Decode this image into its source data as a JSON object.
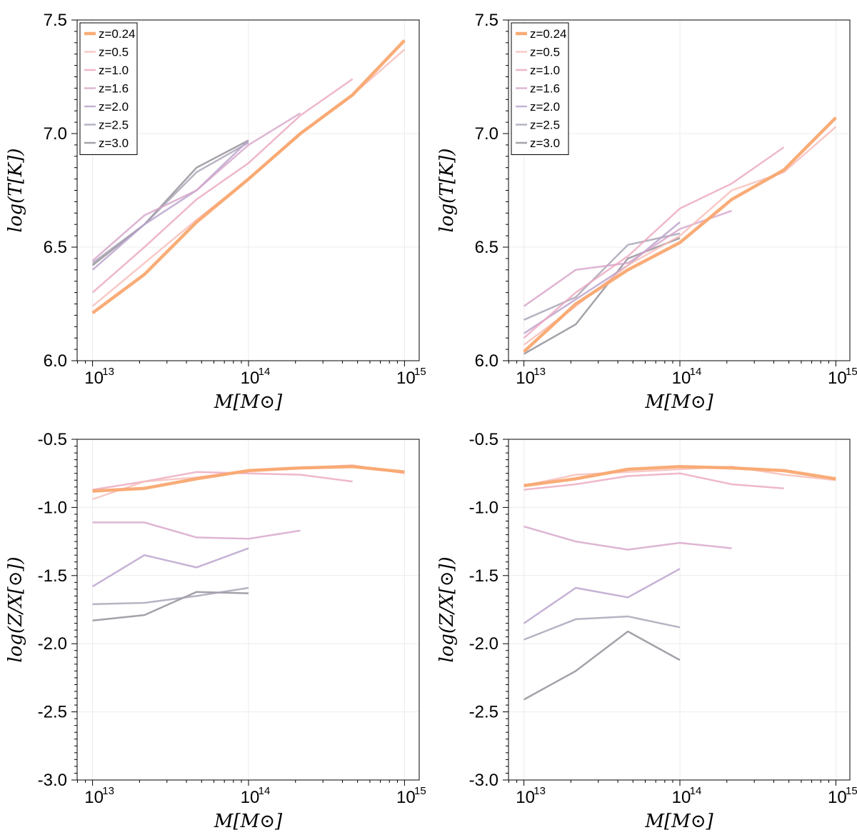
{
  "legend": [
    {
      "label": "z=0.24",
      "color": "#f9a870",
      "width": 4.5,
      "opacity": 0.95
    },
    {
      "label": "z=0.5",
      "color": "#f6bcb8",
      "width": 2.5,
      "opacity": 0.8
    },
    {
      "label": "z=1.0",
      "color": "#eba6bd",
      "width": 2.5,
      "opacity": 0.8
    },
    {
      "label": "z=1.6",
      "color": "#d6a2c8",
      "width": 2.5,
      "opacity": 0.8
    },
    {
      "label": "z=2.0",
      "color": "#b79fcb",
      "width": 2.5,
      "opacity": 0.8
    },
    {
      "label": "z=2.5",
      "color": "#a6a0b3",
      "width": 2.5,
      "opacity": 0.8
    },
    {
      "label": "z=3.0",
      "color": "#8f8a94",
      "width": 2.5,
      "opacity": 0.8
    }
  ],
  "chart_data": [
    {
      "type": "line",
      "panel": "top-left",
      "xlabel": "M[M⊙]",
      "ylabel": "log(T[K])",
      "xscale": "log",
      "xlim": [
        10000000000000.0,
        1000000000000000.0
      ],
      "ylim": [
        6.0,
        7.5
      ],
      "yticks": [
        {
          "v": 6.0,
          "label": "6.0"
        },
        {
          "v": 6.5,
          "label": "6.5"
        },
        {
          "v": 7.0,
          "label": "7.0"
        },
        {
          "v": 7.5,
          "label": "7.5"
        }
      ],
      "xticks": [
        {
          "v": 10000000000000.0,
          "base": "10",
          "exp": "13"
        },
        {
          "v": 100000000000000.0,
          "base": "10",
          "exp": "14"
        },
        {
          "v": 1000000000000000.0,
          "base": "10",
          "exp": "15"
        }
      ],
      "legend": "top-left",
      "series": [
        {
          "name": "z=0.24",
          "x": [
            10000000000000.0,
            21500000000000.0,
            46400000000000.0,
            100000000000000.0,
            215000000000000.0,
            464000000000000.0,
            1000000000000000.0
          ],
          "y": [
            6.21,
            6.38,
            6.61,
            6.8,
            7.0,
            7.17,
            7.41
          ]
        },
        {
          "name": "z=0.5",
          "x": [
            10000000000000.0,
            21500000000000.0,
            46400000000000.0,
            100000000000000.0,
            215000000000000.0,
            464000000000000.0,
            1000000000000000.0
          ],
          "y": [
            6.24,
            6.43,
            6.62,
            6.8,
            7.0,
            7.17,
            7.37
          ]
        },
        {
          "name": "z=1.0",
          "x": [
            10000000000000.0,
            21500000000000.0,
            46400000000000.0,
            100000000000000.0,
            215000000000000.0,
            464000000000000.0
          ],
          "y": [
            6.3,
            6.5,
            6.71,
            6.87,
            7.08,
            7.24
          ]
        },
        {
          "name": "z=1.6",
          "x": [
            10000000000000.0,
            21500000000000.0,
            46400000000000.0,
            100000000000000.0,
            215000000000000.0
          ],
          "y": [
            6.44,
            6.64,
            6.75,
            6.95,
            7.09
          ]
        },
        {
          "name": "z=2.0",
          "x": [
            10000000000000.0,
            21500000000000.0,
            46400000000000.0,
            100000000000000.0
          ],
          "y": [
            6.4,
            6.6,
            6.75,
            6.97
          ]
        },
        {
          "name": "z=2.5",
          "x": [
            10000000000000.0,
            21500000000000.0,
            46400000000000.0,
            100000000000000.0
          ],
          "y": [
            6.43,
            6.6,
            6.83,
            6.96
          ]
        },
        {
          "name": "z=3.0",
          "x": [
            10000000000000.0,
            21500000000000.0,
            46400000000000.0,
            100000000000000.0
          ],
          "y": [
            6.42,
            6.6,
            6.85,
            6.97
          ]
        }
      ]
    },
    {
      "type": "line",
      "panel": "top-right",
      "xlabel": "M[M⊙]",
      "ylabel": "log(T[K])",
      "xscale": "log",
      "xlim": [
        10000000000000.0,
        1000000000000000.0
      ],
      "ylim": [
        6.0,
        7.5
      ],
      "yticks": [
        {
          "v": 6.0,
          "label": "6.0"
        },
        {
          "v": 6.5,
          "label": "6.5"
        },
        {
          "v": 7.0,
          "label": "7.0"
        },
        {
          "v": 7.5,
          "label": "7.5"
        }
      ],
      "xticks": [
        {
          "v": 10000000000000.0,
          "base": "10",
          "exp": "13"
        },
        {
          "v": 100000000000000.0,
          "base": "10",
          "exp": "14"
        },
        {
          "v": 1000000000000000.0,
          "base": "10",
          "exp": "15"
        }
      ],
      "legend": "top-left",
      "series": [
        {
          "name": "z=0.24",
          "x": [
            10000000000000.0,
            21500000000000.0,
            46400000000000.0,
            100000000000000.0,
            215000000000000.0,
            464000000000000.0,
            1000000000000000.0
          ],
          "y": [
            6.04,
            6.25,
            6.4,
            6.52,
            6.71,
            6.84,
            7.07
          ]
        },
        {
          "name": "z=0.5",
          "x": [
            10000000000000.0,
            21500000000000.0,
            46400000000000.0,
            100000000000000.0,
            215000000000000.0,
            464000000000000.0,
            1000000000000000.0
          ],
          "y": [
            6.07,
            6.24,
            6.42,
            6.55,
            6.75,
            6.83,
            7.03
          ]
        },
        {
          "name": "z=1.0",
          "x": [
            10000000000000.0,
            21500000000000.0,
            46400000000000.0,
            100000000000000.0,
            215000000000000.0,
            464000000000000.0
          ],
          "y": [
            6.1,
            6.3,
            6.46,
            6.67,
            6.78,
            6.94
          ]
        },
        {
          "name": "z=1.6",
          "x": [
            10000000000000.0,
            21500000000000.0,
            46400000000000.0,
            100000000000000.0,
            215000000000000.0
          ],
          "y": [
            6.24,
            6.4,
            6.43,
            6.58,
            6.66
          ]
        },
        {
          "name": "z=2.0",
          "x": [
            10000000000000.0,
            21500000000000.0,
            46400000000000.0,
            100000000000000.0
          ],
          "y": [
            6.12,
            6.27,
            6.42,
            6.61
          ]
        },
        {
          "name": "z=2.5",
          "x": [
            10000000000000.0,
            21500000000000.0,
            46400000000000.0,
            100000000000000.0
          ],
          "y": [
            6.18,
            6.28,
            6.51,
            6.56
          ]
        },
        {
          "name": "z=3.0",
          "x": [
            10000000000000.0,
            21500000000000.0,
            46400000000000.0,
            100000000000000.0
          ],
          "y": [
            6.03,
            6.16,
            6.45,
            6.54
          ]
        }
      ]
    },
    {
      "type": "line",
      "panel": "bottom-left",
      "xlabel": "M[M⊙]",
      "ylabel": "log(Z/X[⊙])",
      "xscale": "log",
      "xlim": [
        10000000000000.0,
        1000000000000000.0
      ],
      "ylim": [
        -3.0,
        -0.5
      ],
      "yticks": [
        {
          "v": -3.0,
          "label": "-3.0"
        },
        {
          "v": -2.5,
          "label": "-2.5"
        },
        {
          "v": -2.0,
          "label": "-2.0"
        },
        {
          "v": -1.5,
          "label": "-1.5"
        },
        {
          "v": -1.0,
          "label": "-1.0"
        },
        {
          "v": -0.5,
          "label": "-0.5"
        }
      ],
      "xticks": [
        {
          "v": 10000000000000.0,
          "base": "10",
          "exp": "13"
        },
        {
          "v": 100000000000000.0,
          "base": "10",
          "exp": "14"
        },
        {
          "v": 1000000000000000.0,
          "base": "10",
          "exp": "15"
        }
      ],
      "series": [
        {
          "name": "z=0.24",
          "x": [
            10000000000000.0,
            21500000000000.0,
            46400000000000.0,
            100000000000000.0,
            215000000000000.0,
            464000000000000.0,
            1000000000000000.0
          ],
          "y": [
            -0.88,
            -0.86,
            -0.79,
            -0.73,
            -0.71,
            -0.7,
            -0.74
          ]
        },
        {
          "name": "z=0.5",
          "x": [
            10000000000000.0,
            21500000000000.0,
            46400000000000.0,
            100000000000000.0,
            215000000000000.0,
            464000000000000.0,
            1000000000000000.0
          ],
          "y": [
            -0.94,
            -0.81,
            -0.78,
            -0.73,
            -0.71,
            -0.69,
            -0.75
          ]
        },
        {
          "name": "z=1.0",
          "x": [
            10000000000000.0,
            21500000000000.0,
            46400000000000.0,
            100000000000000.0,
            215000000000000.0,
            464000000000000.0
          ],
          "y": [
            -0.87,
            -0.81,
            -0.74,
            -0.75,
            -0.76,
            -0.81
          ]
        },
        {
          "name": "z=1.6",
          "x": [
            10000000000000.0,
            21500000000000.0,
            46400000000000.0,
            100000000000000.0,
            215000000000000.0
          ],
          "y": [
            -1.11,
            -1.11,
            -1.22,
            -1.23,
            -1.17
          ]
        },
        {
          "name": "z=2.0",
          "x": [
            10000000000000.0,
            21500000000000.0,
            46400000000000.0,
            100000000000000.0
          ],
          "y": [
            -1.58,
            -1.35,
            -1.44,
            -1.3
          ]
        },
        {
          "name": "z=2.5",
          "x": [
            10000000000000.0,
            21500000000000.0,
            46400000000000.0,
            100000000000000.0
          ],
          "y": [
            -1.71,
            -1.7,
            -1.65,
            -1.59
          ]
        },
        {
          "name": "z=3.0",
          "x": [
            10000000000000.0,
            21500000000000.0,
            46400000000000.0,
            100000000000000.0
          ],
          "y": [
            -1.83,
            -1.79,
            -1.62,
            -1.63
          ]
        }
      ]
    },
    {
      "type": "line",
      "panel": "bottom-right",
      "xlabel": "M[M⊙]",
      "ylabel": "log(Z/X[⊙])",
      "xscale": "log",
      "xlim": [
        10000000000000.0,
        1000000000000000.0
      ],
      "ylim": [
        -3.0,
        -0.5
      ],
      "yticks": [
        {
          "v": -3.0,
          "label": "-3.0"
        },
        {
          "v": -2.5,
          "label": "-2.5"
        },
        {
          "v": -2.0,
          "label": "-2.0"
        },
        {
          "v": -1.5,
          "label": "-1.5"
        },
        {
          "v": -1.0,
          "label": "-1.0"
        },
        {
          "v": -0.5,
          "label": "-0.5"
        }
      ],
      "xticks": [
        {
          "v": 10000000000000.0,
          "base": "10",
          "exp": "13"
        },
        {
          "v": 100000000000000.0,
          "base": "10",
          "exp": "14"
        },
        {
          "v": 1000000000000000.0,
          "base": "10",
          "exp": "15"
        }
      ],
      "series": [
        {
          "name": "z=0.24",
          "x": [
            10000000000000.0,
            21500000000000.0,
            46400000000000.0,
            100000000000000.0,
            215000000000000.0,
            464000000000000.0,
            1000000000000000.0
          ],
          "y": [
            -0.84,
            -0.79,
            -0.72,
            -0.7,
            -0.71,
            -0.73,
            -0.79
          ]
        },
        {
          "name": "z=0.5",
          "x": [
            10000000000000.0,
            21500000000000.0,
            46400000000000.0,
            100000000000000.0,
            215000000000000.0,
            464000000000000.0,
            1000000000000000.0
          ],
          "y": [
            -0.84,
            -0.76,
            -0.74,
            -0.72,
            -0.7,
            -0.76,
            -0.8
          ]
        },
        {
          "name": "z=1.0",
          "x": [
            10000000000000.0,
            21500000000000.0,
            46400000000000.0,
            100000000000000.0,
            215000000000000.0,
            464000000000000.0
          ],
          "y": [
            -0.87,
            -0.83,
            -0.77,
            -0.75,
            -0.83,
            -0.86
          ]
        },
        {
          "name": "z=1.6",
          "x": [
            10000000000000.0,
            21500000000000.0,
            46400000000000.0,
            100000000000000.0,
            215000000000000.0
          ],
          "y": [
            -1.14,
            -1.25,
            -1.31,
            -1.26,
            -1.3
          ]
        },
        {
          "name": "z=2.0",
          "x": [
            10000000000000.0,
            21500000000000.0,
            46400000000000.0,
            100000000000000.0
          ],
          "y": [
            -1.85,
            -1.59,
            -1.66,
            -1.45
          ]
        },
        {
          "name": "z=2.5",
          "x": [
            10000000000000.0,
            21500000000000.0,
            46400000000000.0,
            100000000000000.0
          ],
          "y": [
            -1.97,
            -1.82,
            -1.8,
            -1.88
          ]
        },
        {
          "name": "z=3.0",
          "x": [
            10000000000000.0,
            21500000000000.0,
            46400000000000.0,
            100000000000000.0
          ],
          "y": [
            -2.41,
            -2.2,
            -1.91,
            -2.12
          ]
        }
      ]
    }
  ]
}
